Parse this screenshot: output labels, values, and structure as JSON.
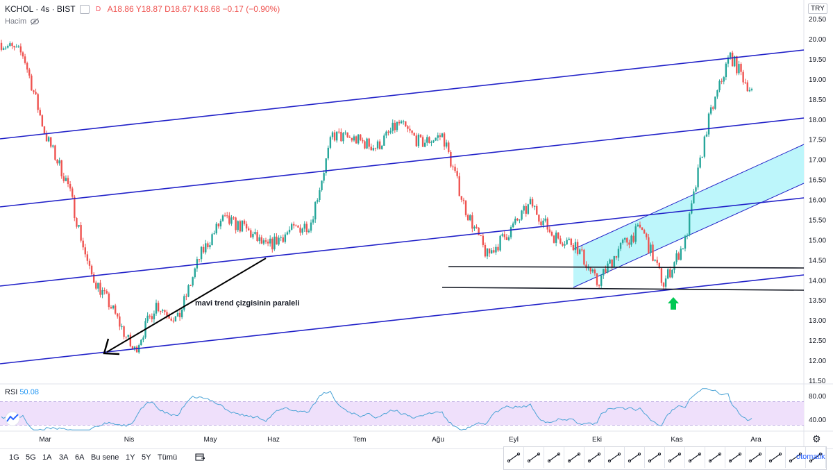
{
  "header": {
    "symbol": "KCHOL · 4s · BIST",
    "flag": "D",
    "ohlc": "A18.86 Y18.87 D18.67 K18.68 −0.17 (−0.90%)",
    "volume_label": "Hacim",
    "currency": "TRY"
  },
  "rsi": {
    "label": "RSI",
    "value": "50.08"
  },
  "annotation": "mavi trend çizgisinin paraleli",
  "timeframes": [
    "1G",
    "5G",
    "1A",
    "3A",
    "6A",
    "Bu sene",
    "1Y",
    "5Y",
    "Tümü"
  ],
  "auto_label": "otomatik",
  "icons": {
    "eye_off": "eye-off-icon",
    "calendar": "calendar-range-icon",
    "settings": "gear-icon",
    "logo": "tradingview-logo-icon"
  },
  "colors": {
    "up": "#26a69a",
    "down": "#ef5350",
    "trend": "#2121c8",
    "support": "#131722",
    "channel_fill": "#bdf6fb",
    "rsi_line": "#4aa3d6",
    "rsi_band": "#efe0fb",
    "arrow_up": "#00c853"
  },
  "tools": [
    "trend-line-icon",
    "horizontal-line-icon",
    "ray-icon",
    "extended-line-icon",
    "info-line-icon",
    "angle-line-icon",
    "parallel-channel-icon",
    "regression-trend-icon",
    "flat-top-bottom-icon",
    "disjoint-channel-icon",
    "pitchfork-icon",
    "date-range-icon",
    "price-range-icon",
    "date-price-range-icon",
    "xabcd-pattern-icon",
    "fib-retracement-icon"
  ],
  "chart_data": [
    {
      "type": "candlestick",
      "title": "",
      "y_scale": "linear",
      "ylim": [
        11.5,
        20.5
      ],
      "y_ticks": [
        "20.50",
        "20.00",
        "19.50",
        "19.00",
        "18.50",
        "18.00",
        "17.50",
        "17.00",
        "16.50",
        "16.00",
        "15.50",
        "15.00",
        "14.50",
        "14.00",
        "13.50",
        "13.00",
        "12.50",
        "12.00",
        "11.50"
      ],
      "x_ticks": [
        "Mar",
        "Nis",
        "May",
        "Haz",
        "Tem",
        "Ağu",
        "Eyl",
        "Eki",
        "Kas",
        "Ara"
      ],
      "approx_close_path": [
        [
          "Feb-end",
          19.9
        ],
        [
          "Mar-start",
          19.6
        ],
        [
          "Mar-mid",
          17.6
        ],
        [
          "Mar-mid2",
          16.4
        ],
        [
          "Mar-late",
          14.2
        ],
        [
          "Mar-end",
          13.3
        ],
        [
          "Mar-24",
          12.2
        ],
        [
          "Mar-31",
          13.4
        ],
        [
          "Nis-start",
          13.0
        ],
        [
          "Nis-mid",
          14.6
        ],
        [
          "Nis-late",
          15.5
        ],
        [
          "May-start",
          15.3
        ],
        [
          "May-mid",
          14.8
        ],
        [
          "May-end",
          15.2
        ],
        [
          "Haz-start",
          15.4
        ],
        [
          "Haz-mid",
          17.6
        ],
        [
          "Haz-late",
          17.5
        ],
        [
          "Tem-start",
          17.3
        ],
        [
          "Tem-mid",
          17.9
        ],
        [
          "Tem-late",
          17.4
        ],
        [
          "Ağu-start",
          17.6
        ],
        [
          "Ağu-early",
          15.8
        ],
        [
          "Ağu-mid",
          14.6
        ],
        [
          "Ağu-late",
          15.2
        ],
        [
          "Eyl-start",
          15.9
        ],
        [
          "Eyl-mid",
          15.1
        ],
        [
          "Eyl-late",
          14.9
        ],
        [
          "Eki-start",
          13.9
        ],
        [
          "Eki-mid",
          14.8
        ],
        [
          "Eki-late",
          15.3
        ],
        [
          "Kas-start",
          13.9
        ],
        [
          "Kas-mid",
          15.0
        ],
        [
          "Kas-late",
          17.9
        ],
        [
          "Ara-start",
          19.6
        ],
        [
          "Ara-now",
          18.68
        ]
      ],
      "annotations": {
        "blue_parallel_trend_lines": 4,
        "horizontal_support_levels": [
          14.35,
          13.8
        ],
        "ascending_channel": "shaded cyan",
        "green_up_arrow": "near Kas",
        "text": "mavi trend çizgisinin paraleli"
      }
    },
    {
      "type": "line",
      "name": "RSI",
      "ylim": [
        20,
        100
      ],
      "y_ticks": [
        "80.00",
        "40.00"
      ],
      "band": [
        30,
        70
      ],
      "last_value": 50.08
    }
  ]
}
